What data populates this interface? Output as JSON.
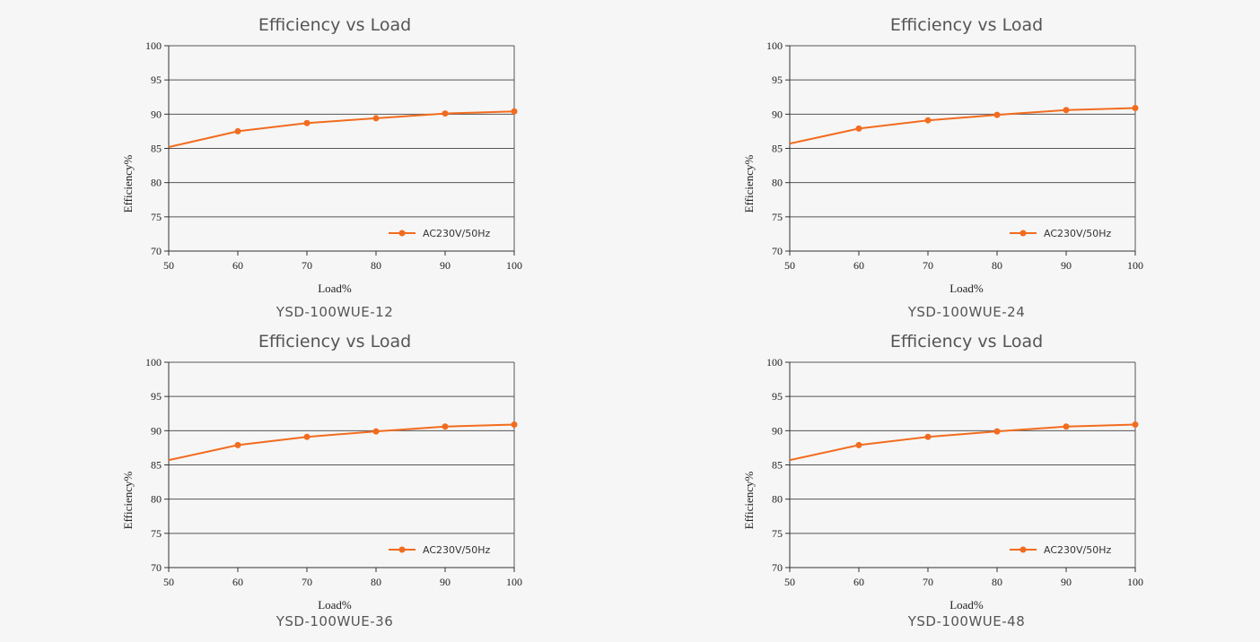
{
  "colors": {
    "series": "#f26c1f",
    "grid": "#555555",
    "background": "#f6f6f6"
  },
  "chart_data": [
    {
      "type": "line",
      "title": "Efficiency vs Load",
      "model": "YSD-100WUE-12",
      "xlabel": "Load%",
      "ylabel": "Efficiency%",
      "xlim": [
        50,
        100
      ],
      "ylim": [
        70,
        100
      ],
      "xticks": [
        "50",
        "60",
        "70",
        "80",
        "90",
        "100"
      ],
      "yticks": [
        "70",
        "75",
        "80",
        "85",
        "90",
        "95",
        "100"
      ],
      "grid": "horizontal",
      "legend": "bottom-right",
      "series": [
        {
          "name": "AC230V/50Hz",
          "x": [
            50,
            60,
            70,
            80,
            90,
            100
          ],
          "y": [
            85.2,
            87.5,
            88.7,
            89.4,
            90.1,
            90.4
          ]
        }
      ]
    },
    {
      "type": "line",
      "title": "Efficiency vs Load",
      "model": "YSD-100WUE-24",
      "xlabel": "Load%",
      "ylabel": "Efficiency%",
      "xlim": [
        50,
        100
      ],
      "ylim": [
        70,
        100
      ],
      "xticks": [
        "50",
        "60",
        "70",
        "80",
        "90",
        "100"
      ],
      "yticks": [
        "70",
        "75",
        "80",
        "85",
        "90",
        "95",
        "100"
      ],
      "grid": "horizontal",
      "legend": "bottom-right",
      "series": [
        {
          "name": "AC230V/50Hz",
          "x": [
            50,
            60,
            70,
            80,
            90,
            100
          ],
          "y": [
            85.7,
            87.9,
            89.1,
            89.9,
            90.6,
            90.9
          ]
        }
      ]
    },
    {
      "type": "line",
      "title": "Efficiency vs Load",
      "model": "YSD-100WUE-36",
      "xlabel": "Load%",
      "ylabel": "Efficiency%",
      "xlim": [
        50,
        100
      ],
      "ylim": [
        70,
        100
      ],
      "xticks": [
        "50",
        "60",
        "70",
        "80",
        "90",
        "100"
      ],
      "yticks": [
        "70",
        "75",
        "80",
        "85",
        "90",
        "95",
        "100"
      ],
      "grid": "horizontal",
      "legend": "bottom-right",
      "series": [
        {
          "name": "AC230V/50Hz",
          "x": [
            50,
            60,
            70,
            80,
            90,
            100
          ],
          "y": [
            85.7,
            87.9,
            89.1,
            89.9,
            90.6,
            90.9
          ]
        }
      ]
    },
    {
      "type": "line",
      "title": "Efficiency vs Load",
      "model": "YSD-100WUE-48",
      "xlabel": "Load%",
      "ylabel": "Efficiency%",
      "xlim": [
        50,
        100
      ],
      "ylim": [
        70,
        100
      ],
      "xticks": [
        "50",
        "60",
        "70",
        "80",
        "90",
        "100"
      ],
      "yticks": [
        "70",
        "75",
        "80",
        "85",
        "90",
        "95",
        "100"
      ],
      "grid": "horizontal",
      "legend": "bottom-right",
      "series": [
        {
          "name": "AC230V/50Hz",
          "x": [
            50,
            60,
            70,
            80,
            90,
            100
          ],
          "y": [
            85.7,
            87.9,
            89.1,
            89.9,
            90.6,
            90.9
          ]
        }
      ]
    }
  ]
}
